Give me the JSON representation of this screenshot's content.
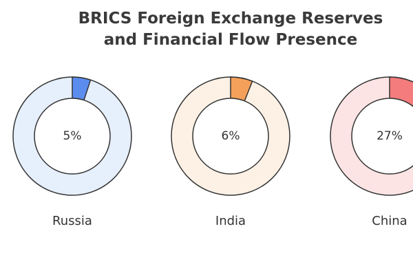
{
  "chart_data": {
    "type": "donut",
    "title": "BRICS Foreign Exchange Reserves and Financial Flow Presence",
    "categories": [
      "Russia",
      "India",
      "China"
    ],
    "values": [
      5,
      6,
      27
    ],
    "value_labels": [
      "5%",
      "6%",
      "27%"
    ],
    "colors": [
      "#5b8def",
      "#f5a05a",
      "#f47c7c"
    ],
    "track_colors": [
      "#e6effc",
      "#fdf1e5",
      "#fde4e4"
    ]
  }
}
